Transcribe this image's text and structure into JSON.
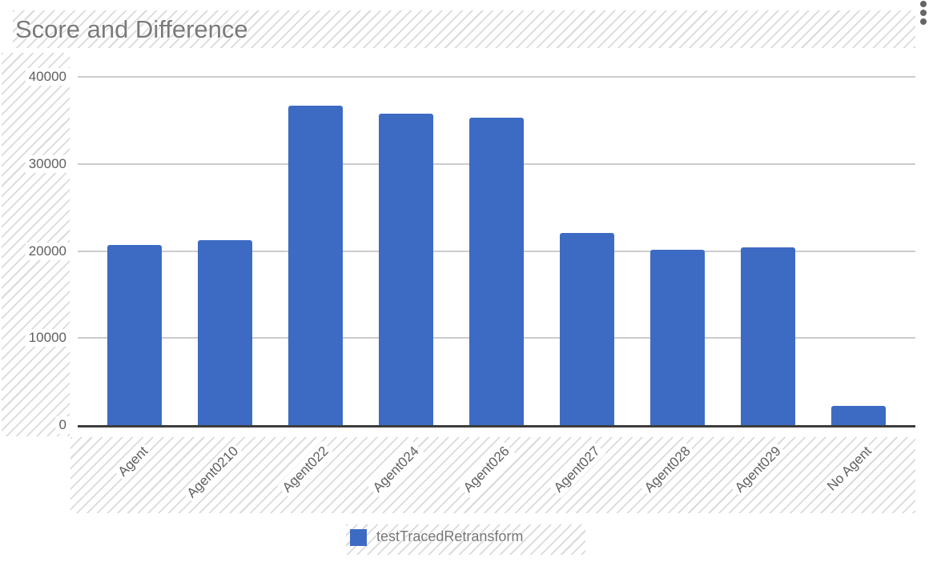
{
  "chart": {
    "title": "Score and Difference"
  },
  "legend": {
    "label": "testTracedRetransform"
  },
  "colors": {
    "bar": "#3D6BC4",
    "title_text": "#7A7A7A",
    "axis_text": "#5F5F5F",
    "gridline": "#CCCCCC",
    "baseline": "#3D3D3D",
    "hatch_stripe": "#DADADA"
  },
  "chart_data": {
    "type": "bar",
    "title": "Score and Difference",
    "categories": [
      "Agent",
      "Agent0210",
      "Agent022",
      "Agent024",
      "Agent026",
      "Agent027",
      "Agent028",
      "Agent029",
      "No Agent"
    ],
    "series": [
      {
        "name": "testTracedRetransform",
        "color": "#3D6BC4",
        "values": [
          20700,
          21200,
          36700,
          35800,
          35300,
          22100,
          20100,
          20400,
          2200
        ]
      }
    ],
    "xlabel": "",
    "ylabel": "",
    "ylim": [
      0,
      40000
    ],
    "yticks": [
      0,
      10000,
      20000,
      30000,
      40000
    ],
    "grid": true,
    "legend_position": "bottom",
    "x_tick_rotation": 45
  }
}
